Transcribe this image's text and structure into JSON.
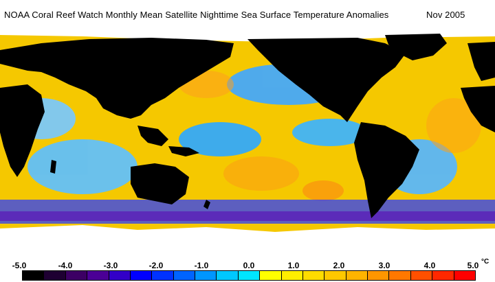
{
  "title": {
    "text": "NOAA Coral Reef Watch Monthly Mean Satellite Nighttime Sea Surface Temperature Anomalies",
    "date": "Nov 2005"
  },
  "legend": {
    "tick_labels": [
      "-5.0",
      "-4.0",
      "-3.0",
      "-2.0",
      "-1.0",
      "0.0",
      "1.0",
      "2.0",
      "3.0",
      "4.0",
      "5.0"
    ],
    "unit": "°C",
    "colors": [
      "#000000",
      "#1e0032",
      "#3c0064",
      "#4b0096",
      "#3200c8",
      "#0000ff",
      "#0032ff",
      "#0064ff",
      "#0096ff",
      "#00c8ff",
      "#00e6ff",
      "#ffff00",
      "#ffee00",
      "#ffdc00",
      "#ffc800",
      "#ffb400",
      "#ff9600",
      "#ff7800",
      "#ff5000",
      "#ff2800",
      "#ff0000"
    ]
  },
  "map": {
    "ocean_color": "#f5c800",
    "land_color": "#000000",
    "ice_color": "#ffffff"
  }
}
